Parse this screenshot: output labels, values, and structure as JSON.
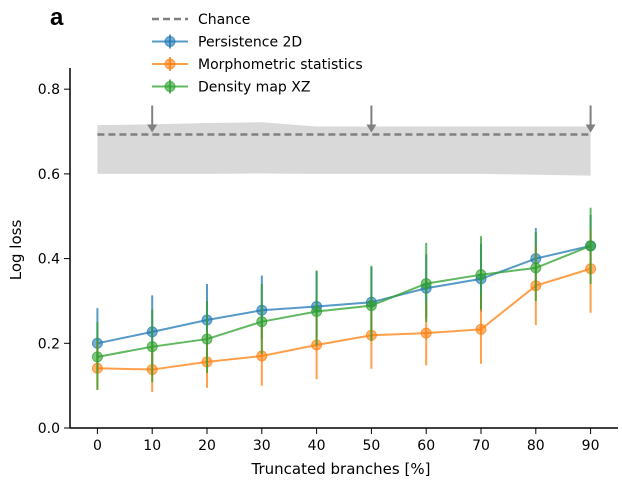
{
  "panel_label": "a",
  "chart_data": {
    "type": "line",
    "xlabel": "Truncated branches [%]",
    "ylabel": "Log loss",
    "xlim": [
      -5,
      95
    ],
    "ylim": [
      0.0,
      0.85
    ],
    "x": [
      0,
      10,
      20,
      30,
      40,
      50,
      60,
      70,
      80,
      90
    ],
    "xticks": [
      "0",
      "10",
      "20",
      "30",
      "40",
      "50",
      "60",
      "70",
      "80",
      "90"
    ],
    "yticks": [
      "0.0",
      "0.2",
      "0.4",
      "0.6",
      "0.8"
    ],
    "ytick_values": [
      0.0,
      0.2,
      0.4,
      0.6,
      0.8
    ],
    "legend_position": "top-left (above axes)",
    "chance": {
      "name": "Chance",
      "color": "#808080",
      "values": [
        0.693,
        0.693,
        0.693,
        0.693,
        0.693,
        0.693,
        0.693,
        0.693,
        0.693,
        0.693
      ],
      "band_upper": [
        0.715,
        0.717,
        0.72,
        0.722,
        0.712,
        0.712,
        0.712,
        0.712,
        0.712,
        0.712
      ],
      "band_lower": [
        0.6,
        0.6,
        0.6,
        0.601,
        0.6,
        0.6,
        0.6,
        0.6,
        0.598,
        0.596
      ],
      "arrows_at": [
        10,
        50,
        90
      ]
    },
    "series": [
      {
        "name": "Persistence 2D",
        "color": "#1f77b4",
        "values": [
          0.2,
          0.227,
          0.255,
          0.278,
          0.287,
          0.297,
          0.33,
          0.352,
          0.4,
          0.43
        ],
        "err_low": [
          0.135,
          0.15,
          0.17,
          0.21,
          0.215,
          0.225,
          0.26,
          0.275,
          0.33,
          0.365
        ],
        "err_high": [
          0.283,
          0.313,
          0.34,
          0.36,
          0.37,
          0.38,
          0.41,
          0.435,
          0.472,
          0.503
        ]
      },
      {
        "name": "Morphometric statistics",
        "color": "#ff7f0e",
        "values": [
          0.141,
          0.138,
          0.156,
          0.17,
          0.196,
          0.219,
          0.224,
          0.233,
          0.336,
          0.376
        ],
        "err_low": [
          0.09,
          0.085,
          0.095,
          0.1,
          0.115,
          0.14,
          0.148,
          0.152,
          0.243,
          0.272
        ],
        "err_high": [
          0.205,
          0.2,
          0.23,
          0.245,
          0.27,
          0.3,
          0.3,
          0.315,
          0.43,
          0.47
        ]
      },
      {
        "name": "Density map XZ",
        "color": "#2ca02c",
        "values": [
          0.168,
          0.192,
          0.21,
          0.251,
          0.275,
          0.289,
          0.341,
          0.362,
          0.378,
          0.43
        ],
        "err_low": [
          0.09,
          0.108,
          0.13,
          0.175,
          0.195,
          0.205,
          0.25,
          0.28,
          0.3,
          0.34
        ],
        "err_high": [
          0.25,
          0.28,
          0.3,
          0.34,
          0.372,
          0.383,
          0.437,
          0.453,
          0.462,
          0.52
        ]
      }
    ]
  }
}
